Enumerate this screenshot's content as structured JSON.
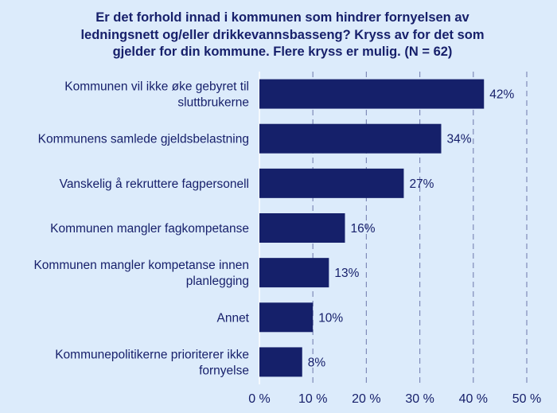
{
  "chart_data": {
    "type": "bar",
    "orientation": "horizontal",
    "title": "Er det forhold innad i kommunen som hindrer fornyelsen av ledningsnett og/eller drikkevannsbasseng? Kryss av for det som gjelder for din kommune. Flere kryss er mulig. (N = 62)",
    "title_lines": [
      "Er det forhold innad i kommunen som hindrer fornyelsen av",
      "ledningsnett og/eller drikkevannsbasseng? Kryss av for det som",
      "gjelder for din kommune. Flere kryss er mulig. (N = 62)"
    ],
    "categories": [
      [
        "Kommunen vil ikke øke gebyret til",
        "sluttbrukerne"
      ],
      [
        "Kommunens samlede gjeldsbelastning"
      ],
      [
        "Vanskelig å rekruttere fagpersonell"
      ],
      [
        "Kommunen mangler fagkompetanse"
      ],
      [
        "Kommunen mangler kompetanse innen",
        "planlegging"
      ],
      [
        "Annet"
      ],
      [
        "Kommunepolitikerne prioriterer ikke",
        "fornyelse"
      ]
    ],
    "values": [
      42,
      34,
      27,
      16,
      13,
      10,
      8
    ],
    "value_labels": [
      "42%",
      "34%",
      "27%",
      "16%",
      "13%",
      "10%",
      "8%"
    ],
    "xlim": [
      0,
      50
    ],
    "xticks": [
      0,
      10,
      20,
      30,
      40,
      50
    ],
    "xtick_labels": [
      "0 %",
      "10 %",
      "20 %",
      "30 %",
      "40 %",
      "50 %"
    ],
    "grid": "vertical dashed",
    "legend": "none",
    "colors": {
      "bar": "#15206a",
      "text": "#17206b",
      "grid": "#7f8ab8",
      "background": "#dcebfb",
      "axis": "#ffffff"
    }
  }
}
